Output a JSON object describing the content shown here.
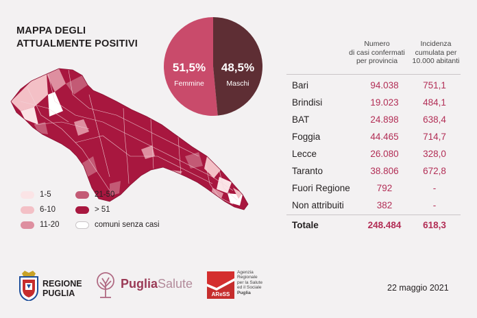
{
  "title": {
    "line1": "MAPPA DEGLI",
    "line2": "ATTUALMENTE POSITIVI"
  },
  "pie": {
    "female_pct": "51,5%",
    "female_label": "Femmine",
    "female_value": 51.5,
    "female_color": "#c94b6b",
    "male_pct": "48,5%",
    "male_label": "Maschi",
    "male_value": 48.5,
    "male_color": "#5e2e34"
  },
  "legend": {
    "items": [
      {
        "label": "1-5",
        "color": "#fbe4e6"
      },
      {
        "label": "6-10",
        "color": "#f3c0c6"
      },
      {
        "label": "11-20",
        "color": "#de8fa0"
      },
      {
        "label": "21-50",
        "color": "#c35a75"
      },
      {
        "label": "> 51",
        "color": "#a8173f"
      },
      {
        "label": "comuni senza casi",
        "color": "#ffffff"
      }
    ]
  },
  "table": {
    "header_col1": [
      "Numero",
      "di casi confermati",
      "per provincia"
    ],
    "header_col2": [
      "Incidenza",
      "cumulata per",
      "10.000 abitanti"
    ],
    "rows": [
      {
        "name": "Bari",
        "cases": "94.038",
        "incidence": "751,1"
      },
      {
        "name": "Brindisi",
        "cases": "19.023",
        "incidence": "484,1"
      },
      {
        "name": "BAT",
        "cases": "24.898",
        "incidence": "638,4"
      },
      {
        "name": "Foggia",
        "cases": "44.465",
        "incidence": "714,7"
      },
      {
        "name": "Lecce",
        "cases": "26.080",
        "incidence": "328,0"
      },
      {
        "name": "Taranto",
        "cases": "38.806",
        "incidence": "672,8"
      },
      {
        "name": "Fuori Regione",
        "cases": "792",
        "incidence": "-"
      },
      {
        "name": "Non attribuiti",
        "cases": "382",
        "incidence": "-"
      }
    ],
    "total": {
      "name": "Totale",
      "cases": "248.484",
      "incidence": "618,3"
    }
  },
  "footer": {
    "regione_line1": "REGIONE",
    "regione_line2": "PUGLIA",
    "puglia_bold": "Puglia",
    "puglia_light": "Salute",
    "ares_logo_text": "AReSS",
    "ares_lines": [
      "Agenzia",
      "Regionale",
      "per la Salute",
      "ed il Sociale",
      "Puglia"
    ],
    "date": "22 maggio 2021"
  },
  "colors": {
    "accent": "#b22d55",
    "background": "#f3f1f2"
  }
}
